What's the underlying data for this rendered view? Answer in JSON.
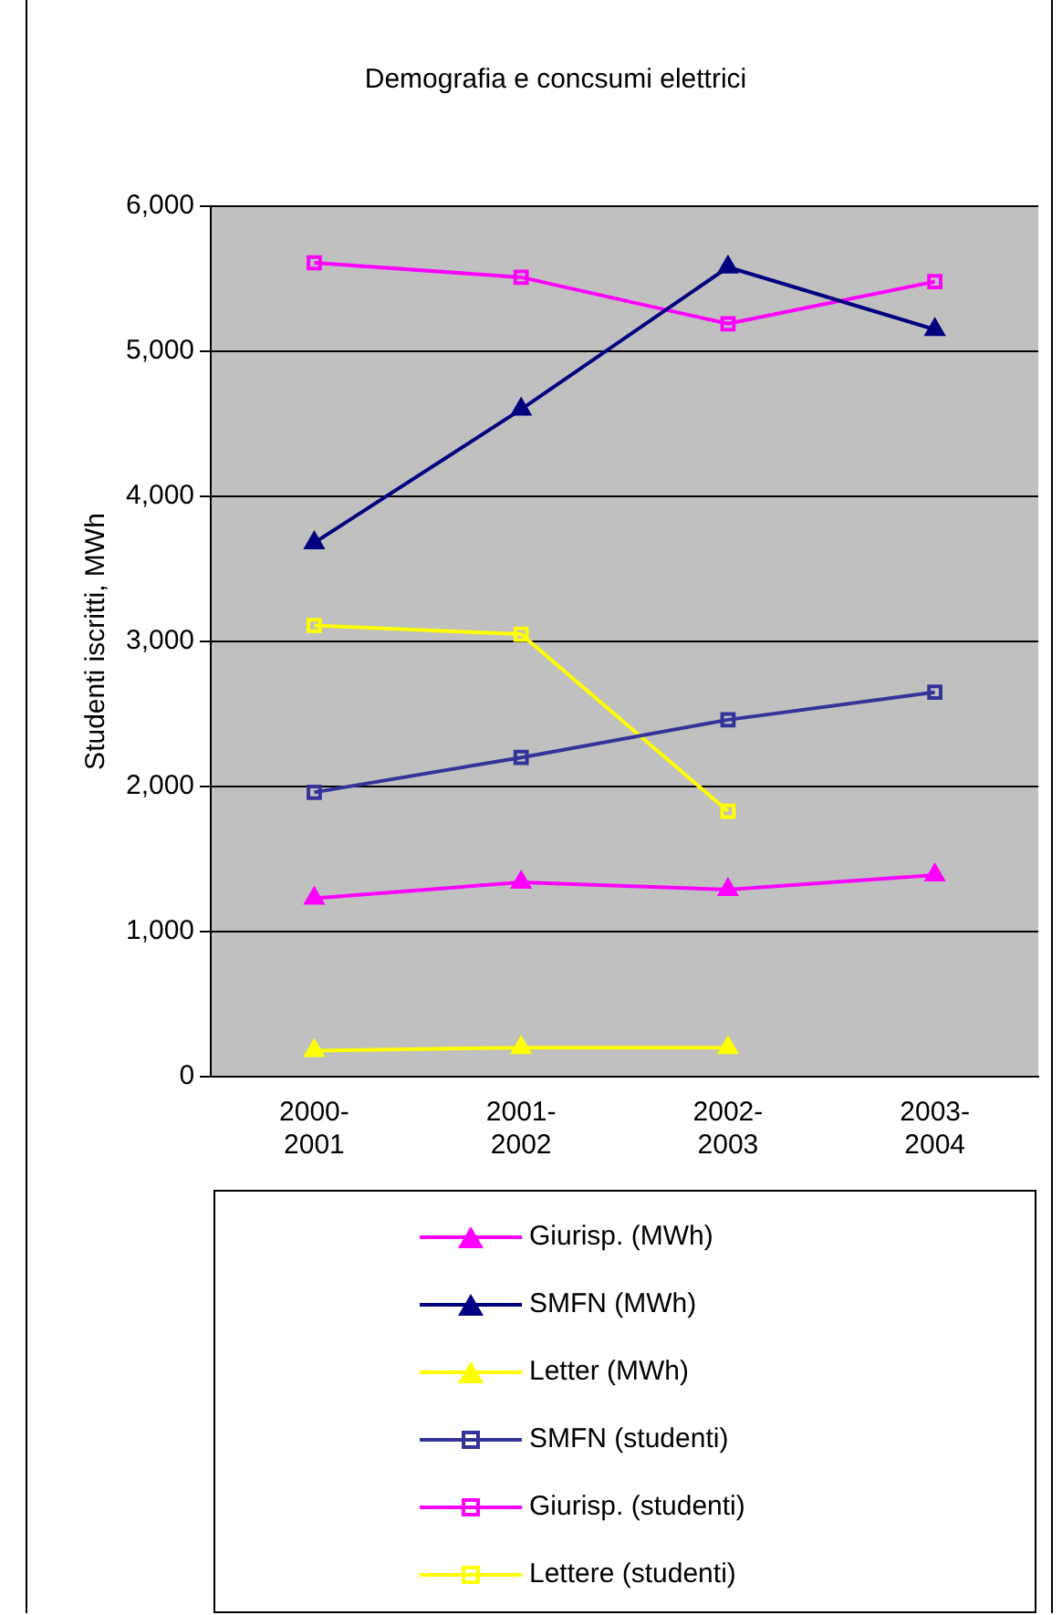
{
  "chart_data": {
    "type": "line",
    "title": "Demografia e concsumi elettrici",
    "ylabel": "Studenti iscritti, MWh",
    "categories": [
      "2000-2001",
      "2001-2002",
      "2002-2003",
      "2003-2004"
    ],
    "ylim": [
      0,
      6000
    ],
    "yticks": [
      {
        "value": 0,
        "label": "0"
      },
      {
        "value": 1000,
        "label": "1,000"
      },
      {
        "value": 2000,
        "label": "2,000"
      },
      {
        "value": 3000,
        "label": "3,000"
      },
      {
        "value": 4000,
        "label": "4,000"
      },
      {
        "value": 5000,
        "label": "5,000"
      },
      {
        "value": 6000,
        "label": "6,000"
      }
    ],
    "grid": "y",
    "legend": "bottom",
    "series": [
      {
        "name": "Giurisp. (MWh)",
        "color": "#ff00ff",
        "marker": "triangle",
        "values": [
          1230,
          1340,
          1290,
          1390
        ]
      },
      {
        "name": "SMFN (MWh)",
        "color": "#000080",
        "marker": "triangle",
        "values": [
          3680,
          4600,
          5580,
          5150
        ]
      },
      {
        "name": "Letter (MWh)",
        "color": "#ffff00",
        "marker": "triangle",
        "values": [
          180,
          200,
          200,
          null
        ]
      },
      {
        "name": "SMFN (studenti)",
        "color": "#333399",
        "marker": "square",
        "values": [
          1960,
          2200,
          2460,
          2650
        ]
      },
      {
        "name": "Giurisp. (studenti)",
        "color": "#ff00ff",
        "marker": "square",
        "values": [
          5610,
          5510,
          5190,
          5480
        ]
      },
      {
        "name": "Lettere (studenti)",
        "color": "#ffff00",
        "marker": "square",
        "values": [
          3110,
          3050,
          1830,
          null
        ]
      }
    ]
  }
}
